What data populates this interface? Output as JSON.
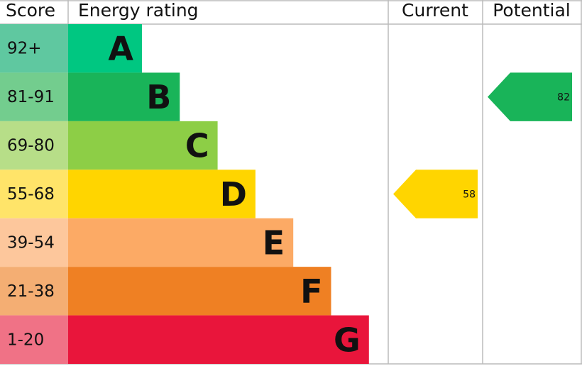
{
  "header": {
    "score": "Score",
    "rating": "Energy rating",
    "current": "Current",
    "potential": "Potential"
  },
  "bands": [
    {
      "score": "92+",
      "letter": "A",
      "color": "#00c781",
      "score_color": "#5fc8a0"
    },
    {
      "score": "81-91",
      "letter": "B",
      "color": "#19b459",
      "score_color": "#73cd8e"
    },
    {
      "score": "69-80",
      "letter": "C",
      "color": "#8dce46",
      "score_color": "#b7de88"
    },
    {
      "score": "55-68",
      "letter": "D",
      "color": "#ffd500",
      "score_color": "#ffe469"
    },
    {
      "score": "39-54",
      "letter": "E",
      "color": "#fcaa65",
      "score_color": "#fdc79c"
    },
    {
      "score": "21-38",
      "letter": "F",
      "color": "#ef8023",
      "score_color": "#f4ae73"
    },
    {
      "score": "1-20",
      "letter": "G",
      "color": "#e9153b",
      "score_color": "#f07286"
    }
  ],
  "current": 58,
  "potential": 82
}
